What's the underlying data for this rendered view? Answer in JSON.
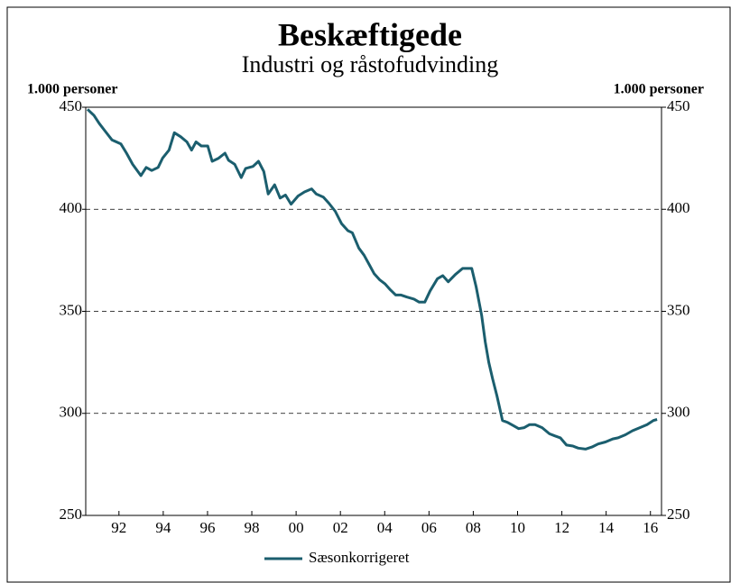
{
  "chart_data": {
    "type": "line",
    "title": "Beskæftigede",
    "subtitle": "Industri og råstofudvinding",
    "y_label": "1.000 personer",
    "y2_label": "1.000 personer",
    "x": [
      1991.08,
      1991.37,
      1991.61,
      1991.86,
      1992.18,
      1992.59,
      1992.84,
      1993.12,
      1993.49,
      1993.73,
      1993.98,
      1994.27,
      1994.47,
      1994.76,
      1995.0,
      1995.29,
      1995.57,
      1995.78,
      1995.98,
      1996.22,
      1996.51,
      1996.71,
      1997.0,
      1997.29,
      1997.45,
      1997.73,
      1998.02,
      1998.22,
      1998.55,
      1998.8,
      1999.04,
      1999.24,
      1999.53,
      1999.78,
      2000.02,
      2000.27,
      2000.59,
      2000.88,
      2001.2,
      2001.41,
      2001.73,
      2001.98,
      2002.27,
      2002.55,
      2002.84,
      2003.04,
      2003.33,
      2003.57,
      2003.82,
      2004.02,
      2004.27,
      2004.51,
      2004.76,
      2005.0,
      2005.24,
      2005.49,
      2005.82,
      2006.06,
      2006.31,
      2006.55,
      2006.88,
      2007.12,
      2007.37,
      2007.69,
      2008.02,
      2008.43,
      2008.63,
      2008.88,
      2009.04,
      2009.2,
      2009.37,
      2009.57,
      2009.82,
      2010.06,
      2010.31,
      2010.55,
      2010.8,
      2011.04,
      2011.29,
      2011.61,
      2011.94,
      2012.18,
      2012.43,
      2012.71,
      2013.0,
      2013.24,
      2013.57,
      2013.86,
      2014.14,
      2014.47,
      2014.8,
      2015.04,
      2015.37,
      2015.69,
      2016.02,
      2016.35,
      2016.63,
      2016.8
    ],
    "series": [
      {
        "name": "Sæsonkorrigeret",
        "color": "#1b5e6e",
        "values": [
          449,
          446,
          442,
          438.5,
          434,
          432,
          427.5,
          422,
          416.5,
          420.5,
          419,
          420.5,
          425,
          429,
          437.5,
          435.5,
          433,
          429,
          433,
          431,
          431,
          423.5,
          425,
          427.5,
          424,
          422,
          415.5,
          420,
          421,
          423.5,
          418.5,
          407.5,
          412,
          405.5,
          407,
          402.5,
          406.5,
          408.5,
          410,
          407.5,
          406,
          403,
          399,
          393,
          389.5,
          388.5,
          381,
          377.5,
          372.5,
          368.5,
          365.5,
          363.5,
          360.5,
          358,
          358,
          357,
          356,
          354.5,
          354.5,
          360,
          366,
          367.5,
          364.5,
          368,
          371,
          371,
          362,
          348,
          335,
          325,
          317,
          308.5,
          296.5,
          295.5,
          294,
          292.5,
          293,
          294.5,
          294.5,
          293,
          290,
          289,
          288,
          284.5,
          284,
          283,
          282.5,
          283.5,
          285,
          286,
          287.5,
          288,
          289.5,
          291.5,
          293,
          294.5,
          296.5,
          297
        ]
      }
    ],
    "xlim": [
      1991,
      2017
    ],
    "xticks": [
      {
        "value": 1992.5,
        "label": "92"
      },
      {
        "value": 1994.5,
        "label": "94"
      },
      {
        "value": 1996.5,
        "label": "96"
      },
      {
        "value": 1998.5,
        "label": "98"
      },
      {
        "value": 2000.5,
        "label": "00"
      },
      {
        "value": 2002.5,
        "label": "02"
      },
      {
        "value": 2004.5,
        "label": "04"
      },
      {
        "value": 2006.5,
        "label": "06"
      },
      {
        "value": 2008.5,
        "label": "08"
      },
      {
        "value": 2010.5,
        "label": "10"
      },
      {
        "value": 2012.5,
        "label": "12"
      },
      {
        "value": 2014.5,
        "label": "14"
      },
      {
        "value": 2016.5,
        "label": "16"
      }
    ],
    "ylim": [
      250,
      450
    ],
    "yticks": [
      250,
      300,
      350,
      400,
      450
    ],
    "y2lim": [
      250,
      450
    ],
    "y2ticks": [
      250,
      300,
      350,
      400,
      450
    ],
    "grid": true
  }
}
